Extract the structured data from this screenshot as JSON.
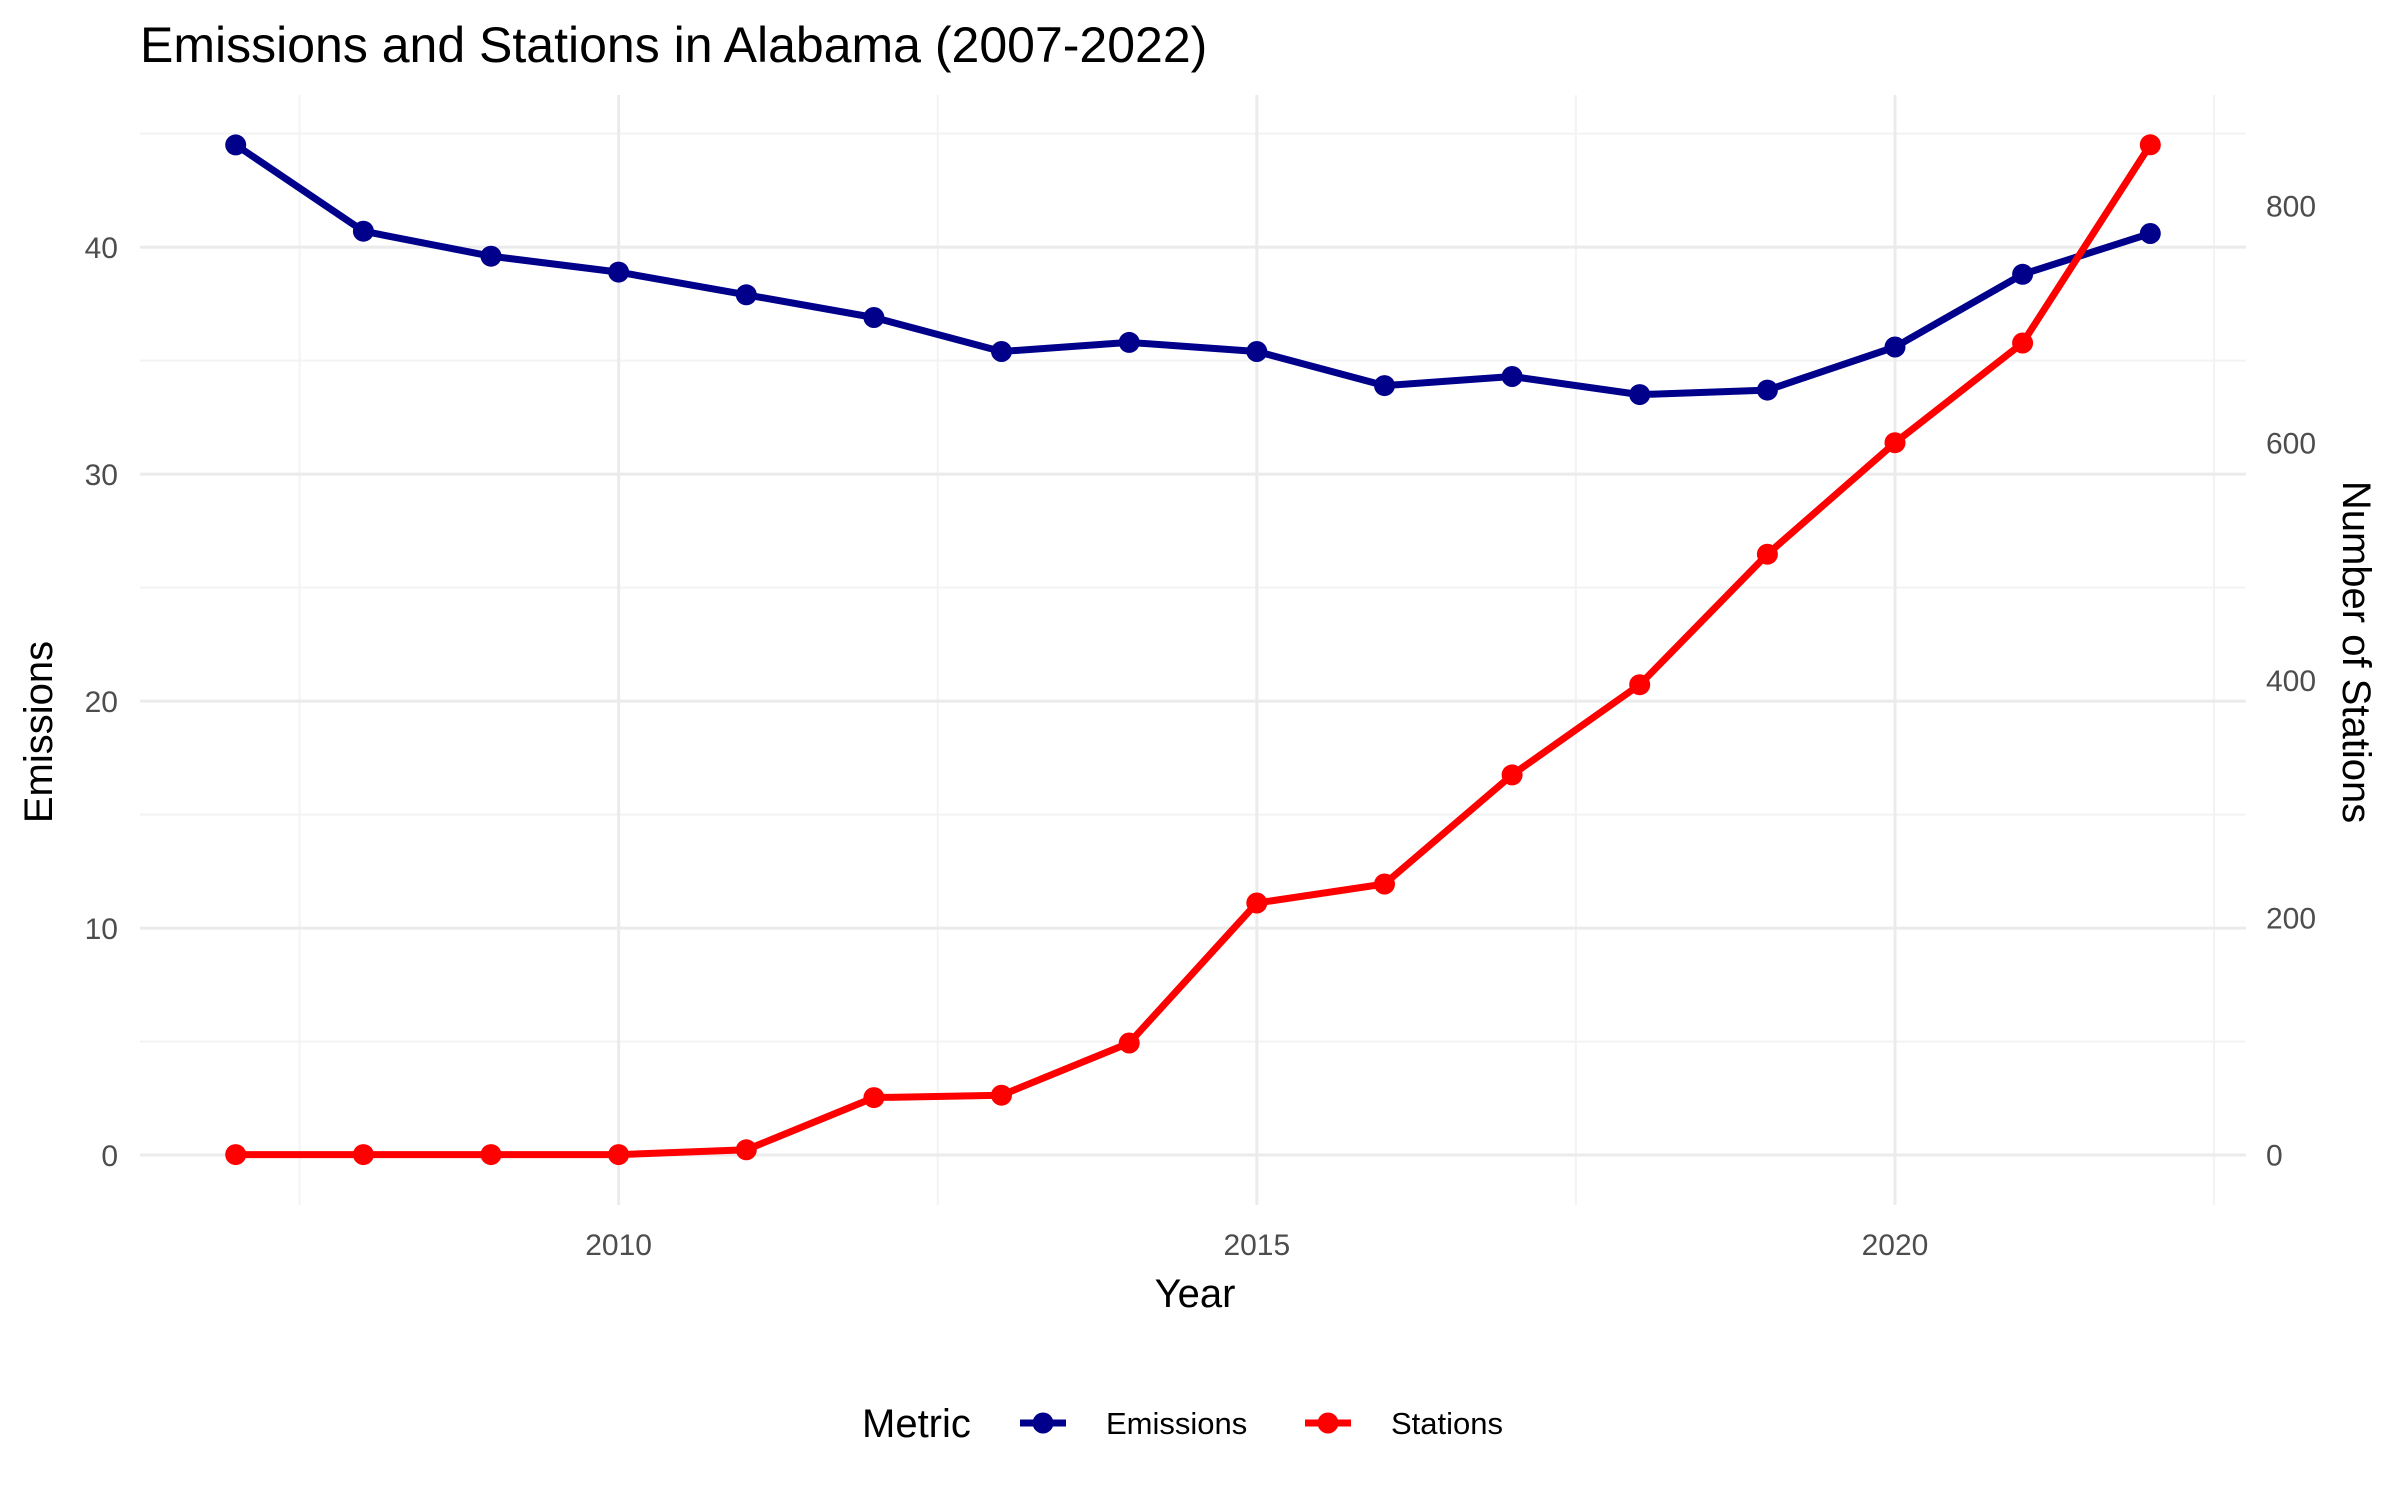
{
  "chart_data": {
    "type": "line",
    "title": "Emissions and Stations in Alabama (2007-2022)",
    "xlabel": "Year",
    "ylabel": "Emissions",
    "ylabel_right": "Number of Stations",
    "x": [
      2007,
      2008,
      2009,
      2010,
      2011,
      2012,
      2013,
      2014,
      2015,
      2016,
      2017,
      2018,
      2019,
      2020,
      2021,
      2022
    ],
    "x_ticks": [
      2010,
      2015,
      2020
    ],
    "x_tick_labels": [
      "2010",
      "2015",
      "2020"
    ],
    "xlim": [
      2006.25,
      2022.75
    ],
    "ylim": [
      -2.2,
      46.7
    ],
    "y_ticks": [
      0,
      10,
      20,
      30,
      40
    ],
    "y_tick_labels": [
      "0",
      "10",
      "20",
      "30",
      "40"
    ],
    "ylim_right": [
      -42.5,
      893
    ],
    "y_ticks_right": [
      0,
      200,
      400,
      600,
      800
    ],
    "y_tick_labels_right": [
      "0",
      "200",
      "400",
      "600",
      "800"
    ],
    "grid": true,
    "legend": {
      "title": "Metric",
      "position": "bottom"
    },
    "series": [
      {
        "name": "Emissions",
        "axis": "left",
        "color": "#00008B",
        "values": [
          44.5,
          40.7,
          39.6,
          38.9,
          37.9,
          36.9,
          35.4,
          35.8,
          35.4,
          33.9,
          34.3,
          33.5,
          33.7,
          35.6,
          38.8,
          40.6
        ]
      },
      {
        "name": "Stations",
        "axis": "right",
        "color": "#FF0000",
        "values": [
          0,
          0,
          0,
          0,
          4,
          48,
          50,
          94,
          212,
          228,
          320,
          396,
          506,
          600,
          684,
          851
        ]
      }
    ]
  }
}
